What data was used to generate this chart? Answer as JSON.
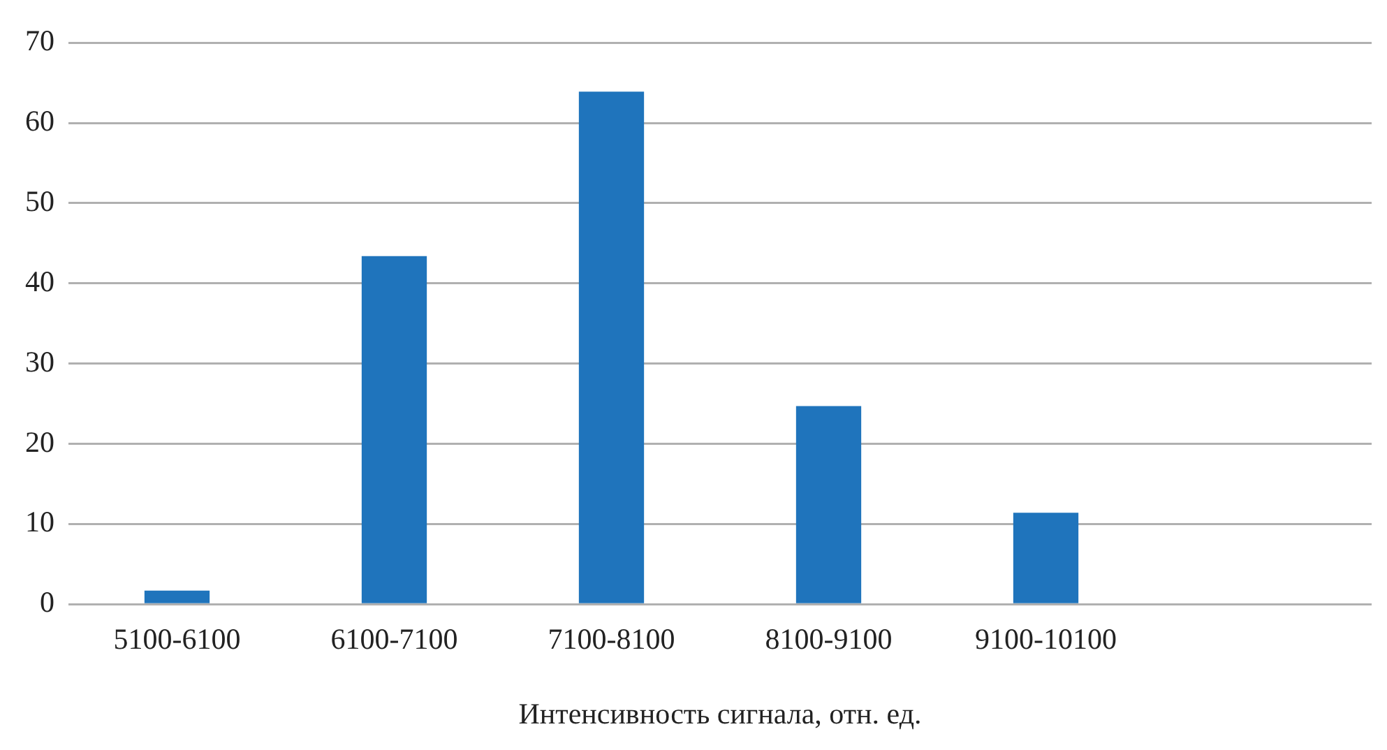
{
  "chart_data": {
    "type": "bar",
    "xlabel": "Интенсивность сигнала, отн. ед.",
    "categories": [
      "5100-6100",
      "6100-7100",
      "7100-8100",
      "8100-9100",
      "9100-10100",
      null
    ],
    "values": [
      1.7,
      43.4,
      63.9,
      24.7,
      11.4,
      null
    ],
    "color": "#1f74bc",
    "ylim": [
      0,
      70
    ],
    "yticks": [
      0,
      10,
      20,
      30,
      40,
      50,
      60,
      70
    ],
    "grid": "y",
    "legend": false
  }
}
